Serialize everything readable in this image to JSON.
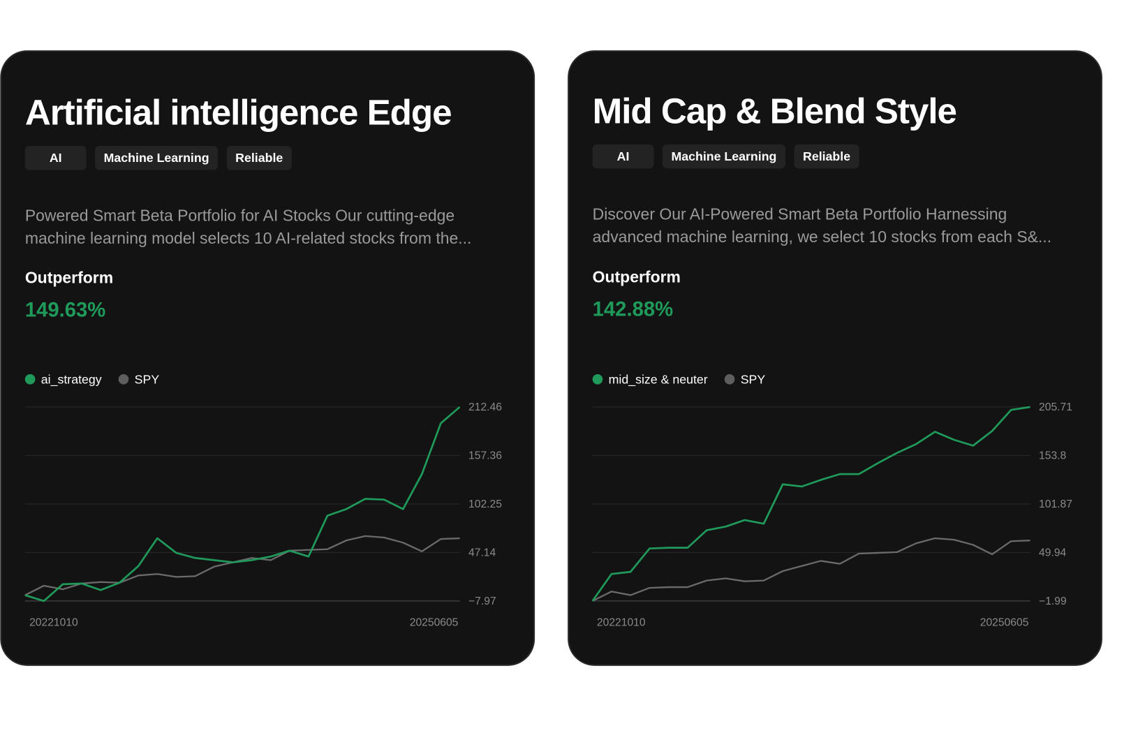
{
  "cards": [
    {
      "title": "Artificial intelligence Edge",
      "tags": [
        "AI",
        "Machine Learning",
        "Reliable"
      ],
      "description_lines": [
        "Powered Smart Beta Portfolio for AI Stocks Our cutting-edge",
        "machine learning model selects 10 AI-related stocks from the..."
      ],
      "metric_label": "Outperform",
      "metric_value": "149.63%"
    },
    {
      "title": "Mid Cap & Blend Style",
      "tags": [
        "AI",
        "Machine Learning",
        "Reliable"
      ],
      "description_lines": [
        "Discover Our AI-Powered Smart Beta Portfolio Harnessing",
        "advanced machine learning, we select 10 stocks from each S&..."
      ],
      "metric_label": "Outperform",
      "metric_value": "142.88%"
    }
  ],
  "chart_data": [
    {
      "type": "line",
      "categories": [
        "20221010",
        null,
        null,
        null,
        null,
        null,
        null,
        null,
        null,
        null,
        null,
        null,
        null,
        null,
        null,
        null,
        null,
        null,
        null,
        null,
        null,
        null,
        null,
        "20250605"
      ],
      "series": [
        {
          "name": "ai_strategy",
          "color": "#1f9a5a",
          "values": [
            -1.34,
            -7.97,
            11.09,
            11.92,
            4.46,
            12.75,
            31.81,
            63.3,
            46.72,
            40.92,
            38.44,
            35.95,
            38.44,
            42.58,
            49.21,
            42.58,
            88.99,
            96.45,
            108.05,
            107.22,
            96.45,
            136.25,
            194.03,
            212.46
          ]
        },
        {
          "name": "SPY",
          "color": "#6b6b6b",
          "values": [
            -1.34,
            9.43,
            5.29,
            11.92,
            13.58,
            12.75,
            21.03,
            22.69,
            19.38,
            20.21,
            30.98,
            35.95,
            40.92,
            38.44,
            49.21,
            50.04,
            50.87,
            60.81,
            65.78,
            64.13,
            58.33,
            48.38,
            62.47,
            63.3
          ]
        }
      ],
      "ylim": [
        -7.97,
        212.46
      ],
      "yticks": [
        {
          "value": -7.97,
          "label": "−7.97"
        },
        47.14,
        102.25,
        157.36,
        212.46
      ],
      "grid": true
    },
    {
      "type": "line",
      "categories": [
        "20221010",
        null,
        null,
        null,
        null,
        null,
        null,
        null,
        null,
        null,
        null,
        null,
        null,
        null,
        null,
        null,
        null,
        null,
        null,
        null,
        null,
        null,
        null,
        "20250605"
      ],
      "series": [
        {
          "name": "mid_size & neuter",
          "color": "#1f9a5a",
          "values": [
            -1.99,
            26.9,
            29.24,
            54.23,
            55.01,
            55.01,
            73.75,
            77.65,
            84.68,
            80.78,
            122.94,
            120.6,
            127.62,
            133.87,
            133.87,
            145.58,
            156.52,
            165.88,
            179.16,
            170.57,
            164.32,
            179.94,
            202.58,
            205.71
          ]
        },
        {
          "name": "SPY",
          "color": "#6b6b6b",
          "values": [
            -1.99,
            8.16,
            4.26,
            12.06,
            12.84,
            12.84,
            19.87,
            22.21,
            19.09,
            19.87,
            30.02,
            35.49,
            40.95,
            37.83,
            48.76,
            49.54,
            50.32,
            59.69,
            65.16,
            63.6,
            58.14,
            47.98,
            62.04,
            62.82
          ]
        }
      ],
      "ylim": [
        -1.99,
        205.71
      ],
      "yticks": [
        {
          "value": -1.99,
          "label": "−1.99"
        },
        49.94,
        101.87,
        153.8,
        205.71
      ],
      "grid": true
    }
  ]
}
